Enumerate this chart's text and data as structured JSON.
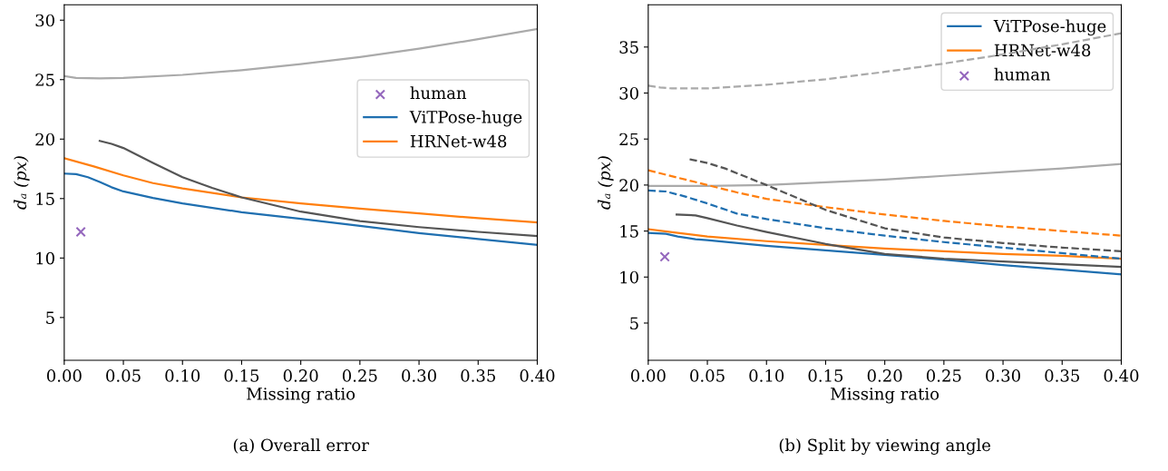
{
  "chart_data": [
    {
      "type": "line",
      "title": "(a) Overall error",
      "xlabel": "Missing ratio",
      "ylabel": "dₐ (px)",
      "xlim": [
        0,
        0.4
      ],
      "ylim": [
        1.4,
        31.3
      ],
      "xticks": [
        {
          "value": 0,
          "label": "0.00"
        },
        {
          "value": 0.05,
          "label": "0.05"
        },
        {
          "value": 0.1,
          "label": "0.10"
        },
        {
          "value": 0.15,
          "label": "0.15"
        },
        {
          "value": 0.2,
          "label": "0.20"
        },
        {
          "value": 0.25,
          "label": "0.25"
        },
        {
          "value": 0.3,
          "label": "0.30"
        },
        {
          "value": 0.35,
          "label": "0.35"
        },
        {
          "value": 0.4,
          "label": "0.40"
        }
      ],
      "yticks": [
        5,
        10,
        15,
        20,
        25,
        30
      ],
      "legend": "right",
      "grid": false,
      "series": [
        {
          "name": "human",
          "type": "scatter",
          "marker": "cross",
          "color": "#9467bd",
          "x": [
            0.014
          ],
          "values": [
            12.2
          ]
        },
        {
          "name": "ViTPose-huge",
          "color": "#1f6fb0",
          "line_style": "solid",
          "x": [
            0,
            0.01,
            0.02,
            0.03,
            0.04,
            0.05,
            0.075,
            0.1,
            0.15,
            0.2,
            0.25,
            0.3,
            0.35,
            0.4
          ],
          "values": [
            17.1,
            17.05,
            16.8,
            16.4,
            15.95,
            15.6,
            15.05,
            14.6,
            13.85,
            13.3,
            12.7,
            12.1,
            11.6,
            11.1
          ]
        },
        {
          "name": "HRNet-w48",
          "color": "#ff7f0e",
          "line_style": "solid",
          "x": [
            0,
            0.025,
            0.05,
            0.075,
            0.1,
            0.15,
            0.2,
            0.25,
            0.3,
            0.35,
            0.4
          ],
          "values": [
            18.4,
            17.7,
            16.95,
            16.3,
            15.85,
            15.1,
            14.6,
            14.15,
            13.75,
            13.35,
            13.0
          ]
        },
        {
          "color": "#aaaaaa",
          "line_style": "solid",
          "x": [
            0,
            0.01,
            0.03,
            0.05,
            0.1,
            0.15,
            0.2,
            0.25,
            0.3,
            0.35,
            0.4
          ],
          "values": [
            25.3,
            25.15,
            25.1,
            25.15,
            25.4,
            25.8,
            26.3,
            26.9,
            27.6,
            28.4,
            29.25
          ]
        },
        {
          "color": "#555555",
          "line_style": "solid",
          "x": [
            0.03,
            0.04,
            0.05,
            0.075,
            0.1,
            0.125,
            0.15,
            0.2,
            0.25,
            0.3,
            0.35,
            0.4
          ],
          "values": [
            19.85,
            19.6,
            19.25,
            18.0,
            16.8,
            15.9,
            15.1,
            13.9,
            13.1,
            12.6,
            12.2,
            11.85
          ]
        }
      ]
    },
    {
      "type": "line",
      "title": "(b) Split by viewing angle",
      "xlabel": "Missing ratio",
      "ylabel": "dₐ (px)",
      "xlim": [
        0,
        0.4
      ],
      "ylim": [
        0.95,
        39.6
      ],
      "xticks": [
        {
          "value": 0,
          "label": "0.00"
        },
        {
          "value": 0.05,
          "label": "0.05"
        },
        {
          "value": 0.1,
          "label": "0.10"
        },
        {
          "value": 0.15,
          "label": "0.15"
        },
        {
          "value": 0.2,
          "label": "0.20"
        },
        {
          "value": 0.25,
          "label": "0.25"
        },
        {
          "value": 0.3,
          "label": "0.30"
        },
        {
          "value": 0.35,
          "label": "0.35"
        },
        {
          "value": 0.4,
          "label": "0.40"
        }
      ],
      "yticks": [
        5,
        10,
        15,
        20,
        25,
        30,
        35
      ],
      "legend": "top right",
      "grid": false,
      "series": [
        {
          "name": "ViTPose-huge",
          "color": "#1f6fb0",
          "line_style": "solid",
          "x": [
            0,
            0.015,
            0.025,
            0.04,
            0.05,
            0.1,
            0.15,
            0.2,
            0.25,
            0.3,
            0.35,
            0.4
          ],
          "values": [
            14.8,
            14.7,
            14.4,
            14.1,
            14.0,
            13.4,
            12.9,
            12.4,
            11.9,
            11.3,
            10.8,
            10.3
          ]
        },
        {
          "name": "HRNet-w48",
          "color": "#ff7f0e",
          "line_style": "solid",
          "x": [
            0,
            0.025,
            0.05,
            0.1,
            0.15,
            0.2,
            0.25,
            0.3,
            0.35,
            0.4
          ],
          "values": [
            15.2,
            14.8,
            14.4,
            13.9,
            13.5,
            13.1,
            12.8,
            12.5,
            12.3,
            12.0
          ]
        },
        {
          "color": "#aaaaaa",
          "line_style": "solid",
          "x": [
            0,
            0.05,
            0.1,
            0.15,
            0.2,
            0.25,
            0.3,
            0.35,
            0.4
          ],
          "values": [
            19.9,
            19.9,
            20.0,
            20.3,
            20.6,
            21.0,
            21.4,
            21.8,
            22.3
          ]
        },
        {
          "color": "#555555",
          "line_style": "solid",
          "x": [
            0.024,
            0.04,
            0.05,
            0.075,
            0.1,
            0.15,
            0.2,
            0.25,
            0.3,
            0.35,
            0.4
          ],
          "values": [
            16.8,
            16.7,
            16.4,
            15.6,
            14.9,
            13.6,
            12.5,
            12.0,
            11.7,
            11.4,
            11.1
          ]
        },
        {
          "name": "human",
          "type": "scatter",
          "marker": "cross",
          "color": "#9467bd",
          "x": [
            0.014
          ],
          "values": [
            12.2
          ]
        },
        {
          "color": "#1f6fb0",
          "line_style": "dashed",
          "x": [
            0,
            0.015,
            0.03,
            0.05,
            0.075,
            0.1,
            0.15,
            0.2,
            0.25,
            0.3,
            0.35,
            0.4
          ],
          "values": [
            19.4,
            19.3,
            18.8,
            18.0,
            16.9,
            16.3,
            15.3,
            14.5,
            13.8,
            13.2,
            12.6,
            12.0
          ]
        },
        {
          "color": "#ff7f0e",
          "line_style": "dashed",
          "x": [
            0,
            0.025,
            0.05,
            0.075,
            0.1,
            0.15,
            0.2,
            0.25,
            0.3,
            0.35,
            0.4
          ],
          "values": [
            21.6,
            20.8,
            20.0,
            19.2,
            18.5,
            17.6,
            16.8,
            16.1,
            15.5,
            15.0,
            14.5
          ]
        },
        {
          "color": "#aaaaaa",
          "line_style": "dashed",
          "x": [
            0,
            0.01,
            0.02,
            0.05,
            0.1,
            0.15,
            0.2,
            0.25,
            0.3,
            0.35,
            0.4
          ],
          "values": [
            30.8,
            30.6,
            30.5,
            30.5,
            30.9,
            31.5,
            32.3,
            33.2,
            34.2,
            35.3,
            36.5
          ]
        },
        {
          "color": "#555555",
          "line_style": "dashed",
          "x": [
            0.035,
            0.05,
            0.065,
            0.1,
            0.15,
            0.2,
            0.25,
            0.3,
            0.35,
            0.4
          ],
          "values": [
            22.8,
            22.4,
            21.8,
            20.0,
            17.3,
            15.3,
            14.3,
            13.7,
            13.2,
            12.8
          ]
        }
      ]
    }
  ]
}
